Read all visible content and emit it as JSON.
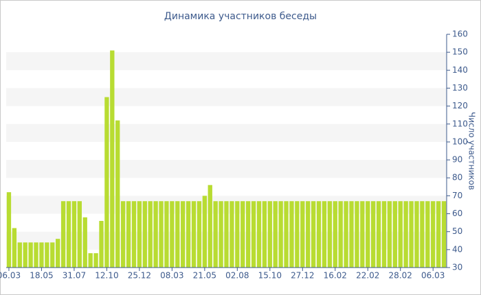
{
  "chart_data": {
    "type": "bar",
    "title": "Динамика участников беседы",
    "y_label": "Число участников",
    "categories": [
      "06.03",
      null,
      null,
      null,
      null,
      null,
      "18.05",
      null,
      null,
      null,
      null,
      null,
      "31.07",
      null,
      null,
      null,
      null,
      null,
      "12.10",
      null,
      null,
      null,
      null,
      null,
      "25.12",
      null,
      null,
      null,
      null,
      null,
      "08.03",
      null,
      null,
      null,
      null,
      null,
      "21.05",
      null,
      null,
      null,
      null,
      null,
      "02.08",
      null,
      null,
      null,
      null,
      null,
      "15.10",
      null,
      null,
      null,
      null,
      null,
      "27.12",
      null,
      null,
      null,
      null,
      null,
      "16.02",
      null,
      null,
      null,
      null,
      null,
      "22.02",
      null,
      null,
      null,
      null,
      null,
      "28.02",
      null,
      null,
      null,
      null,
      null,
      "06.03",
      null,
      null
    ],
    "values": [
      72,
      52,
      44,
      44,
      44,
      44,
      44,
      44,
      44,
      46,
      67,
      67,
      67,
      67,
      58,
      38,
      38,
      56,
      125,
      151,
      112,
      67,
      67,
      67,
      67,
      67,
      67,
      67,
      67,
      67,
      67,
      67,
      67,
      67,
      67,
      67,
      70,
      76,
      67,
      67,
      67,
      67,
      67,
      67,
      67,
      67,
      67,
      67,
      67,
      67,
      67,
      67,
      67,
      67,
      67,
      67,
      67,
      67,
      67,
      67,
      67,
      67,
      67,
      67,
      67,
      67,
      67,
      67,
      67,
      67,
      67,
      67,
      67,
      67,
      67,
      67,
      67,
      67,
      67,
      67,
      67
    ],
    "color": "#b8dc32",
    "ylim": [
      30,
      160
    ],
    "yticks": [
      30,
      40,
      50,
      60,
      70,
      80,
      90,
      100,
      110,
      120,
      130,
      140,
      150,
      160
    ],
    "grid": "bands",
    "y_axis_side": "right"
  }
}
